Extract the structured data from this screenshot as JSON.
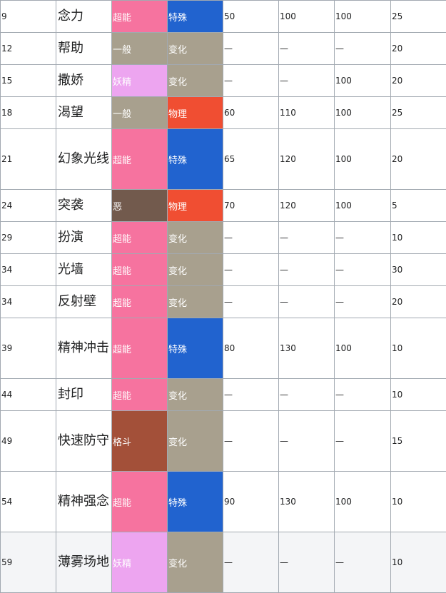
{
  "type_colors": {
    "超能": "#f6739f",
    "一般": "#a8a08e",
    "妖精": "#eda5f0",
    "恶": "#725a4d",
    "格斗": "#a35039"
  },
  "category_colors": {
    "特殊": "#2163cf",
    "变化": "#a8a08e",
    "物理": "#f04e32"
  },
  "moves": [
    {
      "level": "9",
      "name": "念力",
      "type": "超能",
      "category": "特殊",
      "power": "50",
      "accuracy": "100",
      "pp_col": "100",
      "pp": "25"
    },
    {
      "level": "12",
      "name": "帮助",
      "type": "一般",
      "category": "变化",
      "power": "—",
      "accuracy": "—",
      "pp_col": "—",
      "pp": "20"
    },
    {
      "level": "15",
      "name": "撒娇",
      "type": "妖精",
      "category": "变化",
      "power": "—",
      "accuracy": "—",
      "pp_col": "100",
      "pp": "20"
    },
    {
      "level": "18",
      "name": "渴望",
      "type": "一般",
      "category": "物理",
      "power": "60",
      "accuracy": "110",
      "pp_col": "100",
      "pp": "25"
    },
    {
      "level": "21",
      "name": "幻象光线",
      "type": "超能",
      "category": "特殊",
      "power": "65",
      "accuracy": "120",
      "pp_col": "100",
      "pp": "20"
    },
    {
      "level": "24",
      "name": "突袭",
      "type": "恶",
      "category": "物理",
      "power": "70",
      "accuracy": "120",
      "pp_col": "100",
      "pp": "5"
    },
    {
      "level": "29",
      "name": "扮演",
      "type": "超能",
      "category": "变化",
      "power": "—",
      "accuracy": "—",
      "pp_col": "—",
      "pp": "10"
    },
    {
      "level": "34",
      "name": "光墙",
      "type": "超能",
      "category": "变化",
      "power": "—",
      "accuracy": "—",
      "pp_col": "—",
      "pp": "30"
    },
    {
      "level": "34",
      "name": "反射壁",
      "type": "超能",
      "category": "变化",
      "power": "—",
      "accuracy": "—",
      "pp_col": "—",
      "pp": "20"
    },
    {
      "level": "39",
      "name": "精神冲击",
      "type": "超能",
      "category": "特殊",
      "power": "80",
      "accuracy": "130",
      "pp_col": "100",
      "pp": "10"
    },
    {
      "level": "44",
      "name": "封印",
      "type": "超能",
      "category": "变化",
      "power": "—",
      "accuracy": "—",
      "pp_col": "—",
      "pp": "10"
    },
    {
      "level": "49",
      "name": "快速防守",
      "type": "格斗",
      "category": "变化",
      "power": "—",
      "accuracy": "—",
      "pp_col": "—",
      "pp": "15"
    },
    {
      "level": "54",
      "name": "精神强念",
      "type": "超能",
      "category": "特殊",
      "power": "90",
      "accuracy": "130",
      "pp_col": "100",
      "pp": "10"
    },
    {
      "level": "59",
      "name": "薄雾场地",
      "type": "妖精",
      "category": "变化",
      "power": "—",
      "accuracy": "—",
      "pp_col": "—",
      "pp": "10"
    }
  ]
}
